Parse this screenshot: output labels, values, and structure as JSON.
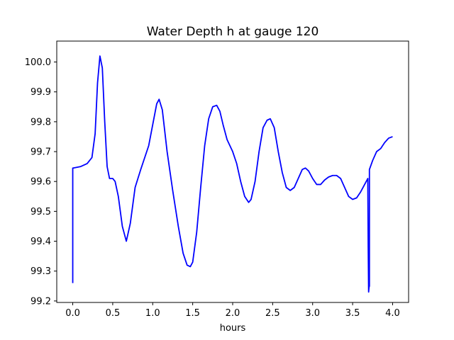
{
  "chart_data": {
    "type": "line",
    "title": "Water Depth h at gauge 120",
    "xlabel": "hours",
    "ylabel": "",
    "xlim": [
      -0.2,
      4.2
    ],
    "ylim": [
      99.195,
      100.07
    ],
    "x_ticks": [
      0.0,
      0.5,
      1.0,
      1.5,
      2.0,
      2.5,
      3.0,
      3.5,
      4.0
    ],
    "x_tick_labels": [
      "0.0",
      "0.5",
      "1.0",
      "1.5",
      "2.0",
      "2.5",
      "3.0",
      "3.5",
      "4.0"
    ],
    "y_ticks": [
      99.2,
      99.3,
      99.4,
      99.5,
      99.6,
      99.7,
      99.8,
      99.9,
      100.0
    ],
    "y_tick_labels": [
      "99.2",
      "99.3",
      "99.4",
      "99.5",
      "99.6",
      "99.7",
      "99.8",
      "99.9",
      "100.0"
    ],
    "grid": false,
    "series": [
      {
        "color": "#0000ff",
        "x": [
          0.0,
          0.0,
          0.005,
          0.1,
          0.18,
          0.24,
          0.28,
          0.31,
          0.34,
          0.37,
          0.4,
          0.43,
          0.46,
          0.5,
          0.53,
          0.57,
          0.62,
          0.67,
          0.72,
          0.78,
          0.85,
          0.95,
          1.0,
          1.05,
          1.08,
          1.12,
          1.18,
          1.25,
          1.32,
          1.38,
          1.43,
          1.47,
          1.5,
          1.55,
          1.6,
          1.65,
          1.7,
          1.75,
          1.8,
          1.84,
          1.88,
          1.93,
          2.0,
          2.05,
          2.1,
          2.15,
          2.2,
          2.23,
          2.28,
          2.33,
          2.38,
          2.43,
          2.47,
          2.52,
          2.57,
          2.62,
          2.67,
          2.72,
          2.77,
          2.82,
          2.87,
          2.91,
          2.95,
          3.0,
          3.05,
          3.1,
          3.15,
          3.2,
          3.25,
          3.3,
          3.35,
          3.4,
          3.45,
          3.5,
          3.55,
          3.6,
          3.65,
          3.69,
          3.69,
          3.695,
          3.7,
          3.705,
          3.71,
          3.71,
          3.75,
          3.8,
          3.85,
          3.9,
          3.95,
          4.0
        ],
        "y": [
          99.26,
          99.645,
          99.645,
          99.65,
          99.66,
          99.68,
          99.76,
          99.93,
          100.02,
          99.98,
          99.8,
          99.65,
          99.61,
          99.61,
          99.6,
          99.55,
          99.45,
          99.4,
          99.46,
          99.58,
          99.64,
          99.72,
          99.79,
          99.86,
          99.875,
          99.84,
          99.7,
          99.57,
          99.45,
          99.36,
          99.32,
          99.315,
          99.33,
          99.43,
          99.58,
          99.72,
          99.81,
          99.85,
          99.855,
          99.835,
          99.79,
          99.74,
          99.7,
          99.66,
          99.6,
          99.55,
          99.53,
          99.54,
          99.6,
          99.7,
          99.78,
          99.805,
          99.81,
          99.78,
          99.7,
          99.63,
          99.58,
          99.57,
          99.58,
          99.61,
          99.64,
          99.645,
          99.635,
          99.61,
          99.59,
          99.59,
          99.605,
          99.615,
          99.62,
          99.62,
          99.61,
          99.58,
          99.55,
          99.54,
          99.545,
          99.565,
          99.59,
          99.61,
          99.6,
          99.38,
          99.23,
          99.245,
          99.25,
          99.64,
          99.67,
          99.7,
          99.71,
          99.73,
          99.745,
          99.75
        ]
      }
    ]
  }
}
